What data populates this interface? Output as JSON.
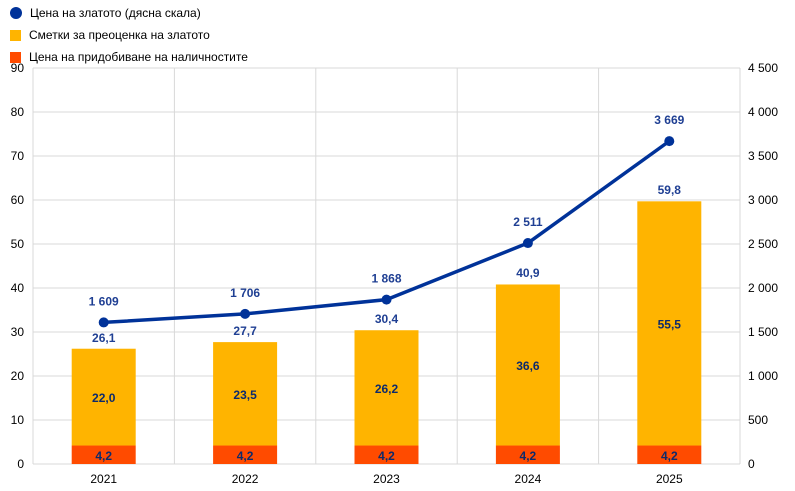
{
  "legend": {
    "items": [
      {
        "label": "Цена на златото (дясна скала)",
        "shape": "dot",
        "color": "#003299"
      },
      {
        "label": "Сметки за преоценка на златото",
        "shape": "square",
        "color": "#FFB400"
      },
      {
        "label": "Цена на придобиване на наличностите",
        "shape": "square",
        "color": "#FF4B00"
      }
    ]
  },
  "chart_data": {
    "type": "bar",
    "categories": [
      "2021",
      "2022",
      "2023",
      "2024",
      "2025"
    ],
    "series": [
      {
        "name": "Цена на придобиване на наличностите",
        "kind": "stacked-bar",
        "axis": "left",
        "color": "#FF4B00",
        "values": [
          4.2,
          4.2,
          4.2,
          4.2,
          4.2
        ],
        "labels": [
          "4,2",
          "4,2",
          "4,2",
          "4,2",
          "4,2"
        ]
      },
      {
        "name": "Сметки за преоценка на златото",
        "kind": "stacked-bar",
        "axis": "left",
        "color": "#FFB400",
        "values": [
          22.0,
          23.5,
          26.2,
          36.6,
          55.5
        ],
        "labels": [
          "22,0",
          "23,5",
          "26,2",
          "36,6",
          "55,5"
        ]
      },
      {
        "name": "Цена на златото (дясна скала)",
        "kind": "line",
        "axis": "right",
        "color": "#003299",
        "values": [
          1609,
          1706,
          1868,
          2511,
          3669
        ],
        "labels": [
          "1 609",
          "1 706",
          "1 868",
          "2 511",
          "3 669"
        ]
      }
    ],
    "totals": {
      "values": [
        26.1,
        27.7,
        30.4,
        40.9,
        59.8
      ],
      "labels": [
        "26,1",
        "27,7",
        "30,4",
        "40,9",
        "59,8"
      ]
    },
    "y_left": {
      "min": 0,
      "max": 90,
      "ticks": [
        "0",
        "10",
        "20",
        "30",
        "40",
        "50",
        "60",
        "70",
        "80",
        "90"
      ]
    },
    "y_right": {
      "min": 0,
      "max": 4500,
      "ticks": [
        "0",
        "500",
        "1 000",
        "1 500",
        "2 000",
        "2 500",
        "3 000",
        "3 500",
        "4 000",
        "4 500"
      ]
    },
    "grid": true,
    "legend_position": "top-left"
  }
}
